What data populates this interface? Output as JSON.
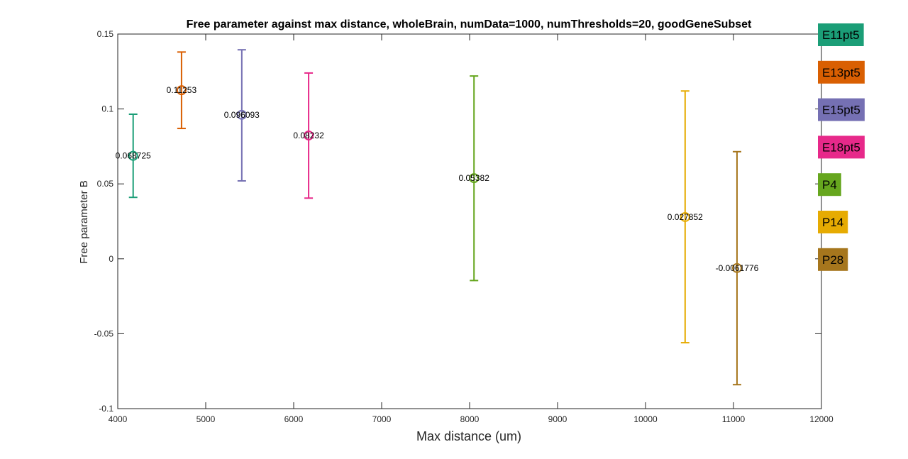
{
  "chart_data": {
    "type": "errorbar",
    "title": "Free parameter against max distance, wholeBrain, numData=1000, numThresholds=20, goodGeneSubset",
    "xlabel": "Max distance (um)",
    "ylabel": "Free parameter B",
    "xlim": [
      4000,
      12000
    ],
    "ylim": [
      -0.1,
      0.15
    ],
    "xticks": [
      4000,
      5000,
      6000,
      7000,
      8000,
      9000,
      10000,
      11000,
      12000
    ],
    "yticks": [
      -0.1,
      -0.05,
      0,
      0.05,
      0.1,
      0.15
    ],
    "xtick_labels": [
      "4000",
      "5000",
      "6000",
      "7000",
      "8000",
      "9000",
      "10000",
      "11000",
      "12000"
    ],
    "ytick_labels": [
      "-0.1",
      "-0.05",
      "0",
      "0.05",
      "0.1",
      "0.15"
    ],
    "legend_position": "right",
    "series": [
      {
        "name": "E11pt5",
        "color": "#1b9e77",
        "x": 4175,
        "y": 0.068725,
        "lower": 0.041,
        "upper": 0.0965,
        "label": "0.068725"
      },
      {
        "name": "E13pt5",
        "color": "#d95f02",
        "x": 4725,
        "y": 0.11253,
        "lower": 0.087,
        "upper": 0.138,
        "label": "0.11253"
      },
      {
        "name": "E15pt5",
        "color": "#7570b3",
        "x": 5410,
        "y": 0.096093,
        "lower": 0.052,
        "upper": 0.1395,
        "label": "0.096093"
      },
      {
        "name": "E18pt5",
        "color": "#e7298a",
        "x": 6170,
        "y": 0.08232,
        "lower": 0.0405,
        "upper": 0.124,
        "label": "0.08232"
      },
      {
        "name": "P4",
        "color": "#66a61e",
        "x": 8050,
        "y": 0.05382,
        "lower": -0.0145,
        "upper": 0.122,
        "label": "0.05382"
      },
      {
        "name": "P14",
        "color": "#e6ab02",
        "x": 10450,
        "y": 0.027852,
        "lower": -0.056,
        "upper": 0.112,
        "label": "0.027852"
      },
      {
        "name": "P28",
        "color": "#a6761d",
        "x": 11040,
        "y": -0.0061776,
        "lower": -0.084,
        "upper": 0.0715,
        "label": "-0.0061776"
      }
    ]
  }
}
